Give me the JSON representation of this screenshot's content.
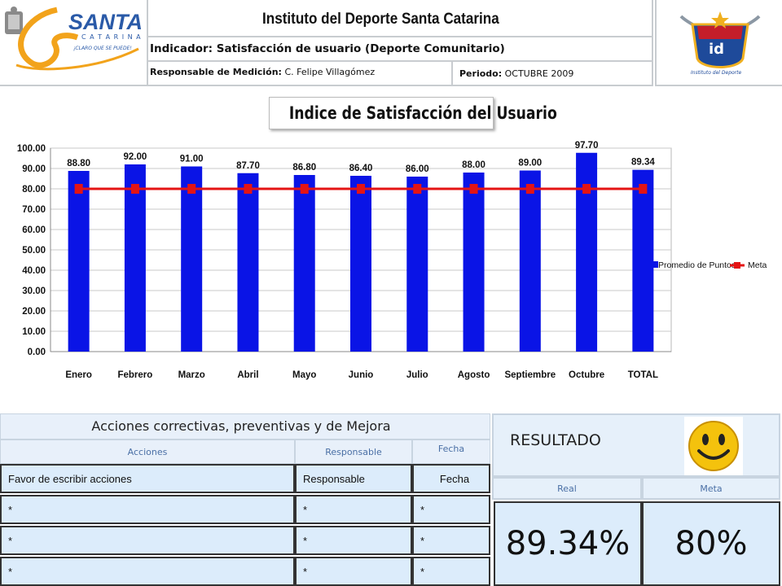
{
  "header": {
    "title": "Instituto del Deporte Santa Catarina",
    "indicator": "Indicador: Satisfacción de usuario (Deporte Comunitario)",
    "responsible_label": "Responsable de Medición:",
    "responsible_name": "C. Felipe Villagómez",
    "period_label": "Periodo:",
    "period_value": "OCTUBRE 2009",
    "logo_text": "SANTA",
    "logo_subtext": "C A T A R I N A",
    "logo_tagline": "¡CLARO QUE SE PUEDE!",
    "crest_text": "id",
    "crest_subtext": "Instituto del Deporte"
  },
  "chart_data": {
    "type": "bar",
    "title": "Indice de Satisfacción del Usuario",
    "categories": [
      "Enero",
      "Febrero",
      "Marzo",
      "Abril",
      "Mayo",
      "Junio",
      "Julio",
      "Agosto",
      "Septiembre",
      "Octubre",
      "TOTAL"
    ],
    "series": [
      {
        "name": "Promedio de Puntos",
        "type": "bar",
        "color": "#0a14e6",
        "values": [
          88.8,
          92.0,
          91.0,
          87.7,
          86.8,
          86.4,
          86.0,
          88.0,
          89.0,
          97.7,
          89.34
        ],
        "labels": [
          "88.80",
          "92.00",
          "91.00",
          "87.70",
          "86.80",
          "86.40",
          "86.00",
          "88.00",
          "89.00",
          "97.70",
          "89.34"
        ]
      },
      {
        "name": "Meta",
        "type": "line",
        "color": "#e41414",
        "values": [
          80,
          80,
          80,
          80,
          80,
          80,
          80,
          80,
          80,
          80,
          80
        ]
      }
    ],
    "ylim": [
      0,
      100
    ],
    "yticks": [
      "0.00",
      "10.00",
      "20.00",
      "30.00",
      "40.00",
      "50.00",
      "60.00",
      "70.00",
      "80.00",
      "90.00",
      "100.00"
    ],
    "grid": true,
    "legend": "right"
  },
  "actions": {
    "title": "Acciones correctivas, preventivas y de Mejora",
    "col_headers": [
      "Acciones",
      "Responsable",
      "Fecha"
    ],
    "rows": [
      [
        "Favor de escribir acciones",
        "Responsable",
        "Fecha"
      ],
      [
        "*",
        "*",
        "*"
      ],
      [
        "*",
        "*",
        "*"
      ],
      [
        "*",
        "*",
        "*"
      ]
    ]
  },
  "result": {
    "title": "RESULTADO",
    "real_label": "Real",
    "meta_label": "Meta",
    "real_value": "89.34%",
    "meta_value": "80%",
    "icon": "smiley-icon"
  }
}
